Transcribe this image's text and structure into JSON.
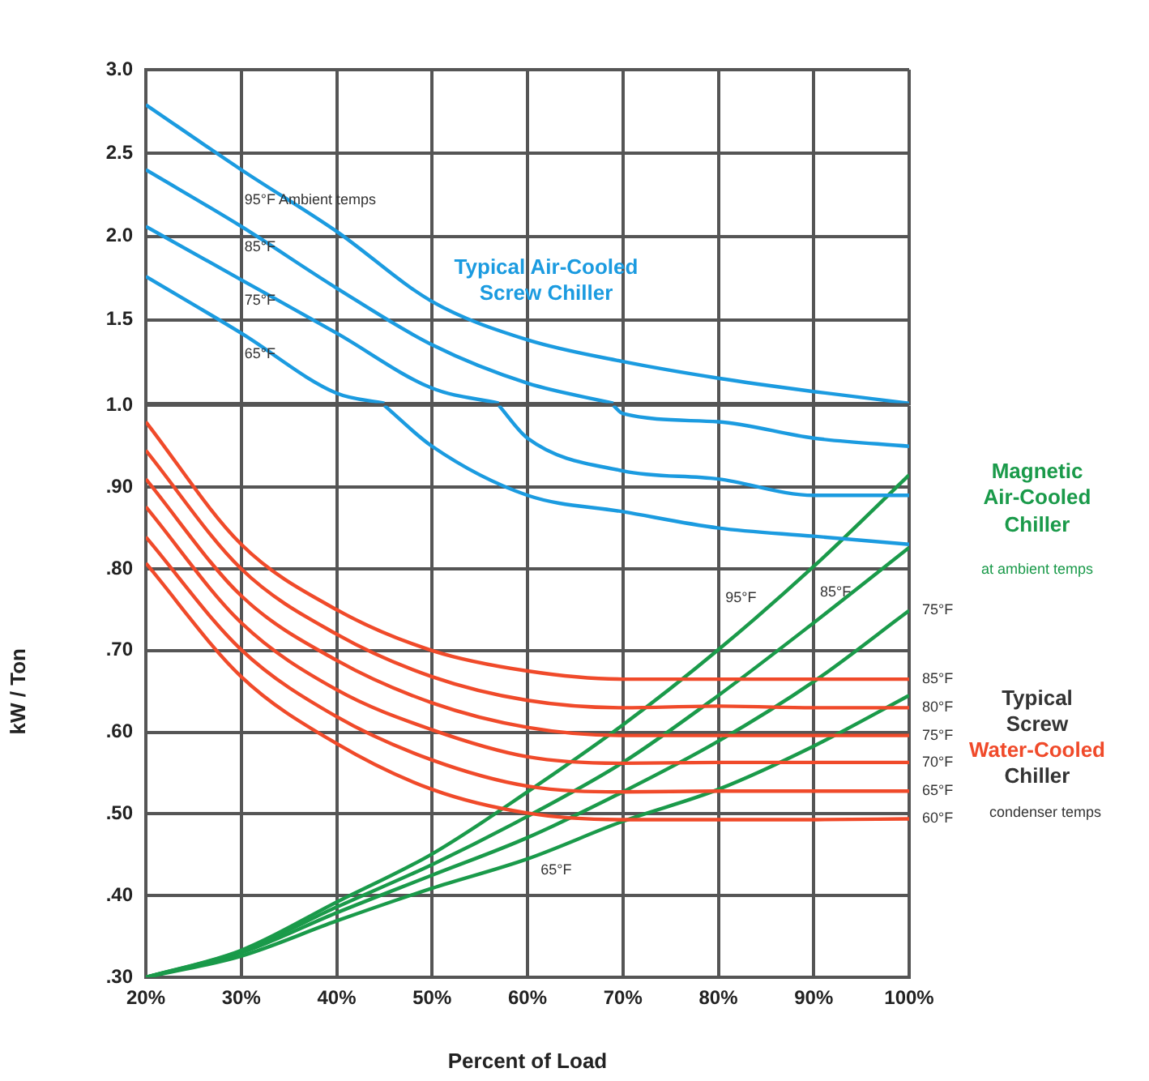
{
  "chart_data": [
    {
      "type": "line",
      "x": [
        20,
        30,
        40,
        50,
        60,
        70,
        80,
        90,
        100
      ],
      "xlim": [
        20,
        100
      ],
      "xticks": [
        20,
        30,
        40,
        50,
        60,
        70,
        80,
        90,
        100
      ],
      "ylim": [
        1.0,
        3.0
      ],
      "yticks": [
        {
          "value": 1.5,
          "label": "1.5"
        },
        {
          "value": 2.0,
          "label": "2.0"
        },
        {
          "value": 2.5,
          "label": "2.5"
        },
        {
          "value": 3.0,
          "label": "3.0"
        }
      ],
      "tick_labels": "y",
      "grid": true,
      "legend": false,
      "marker": "none",
      "line_style": "solid",
      "series": [
        {
          "name": "95°F Ambient temps",
          "color": "#1b9be0",
          "values": [
            2.79,
            2.4,
            2.03,
            1.61,
            1.38,
            1.25,
            1.15,
            1.07,
            1.0
          ]
        },
        {
          "name": "85°F",
          "color": "#1b9be0",
          "x": [
            20,
            30,
            40,
            50,
            60,
            69
          ],
          "values": [
            2.4,
            2.06,
            1.69,
            1.35,
            1.12,
            1.0
          ]
        },
        {
          "name": "75°F",
          "color": "#1b9be0",
          "x": [
            20,
            30,
            40,
            50,
            57
          ],
          "values": [
            2.06,
            1.74,
            1.42,
            1.09,
            1.0
          ]
        },
        {
          "name": "65°F",
          "color": "#1b9be0",
          "x": [
            20,
            30,
            40,
            45
          ],
          "values": [
            1.76,
            1.42,
            1.06,
            1.0
          ]
        }
      ],
      "annotations": [
        "Typical Air-Cooled Screw Chiller"
      ]
    },
    {
      "type": "line",
      "xlabel": "Percent of Load",
      "ylabel": "kW / Ton",
      "x": [
        20,
        30,
        40,
        50,
        60,
        70,
        80,
        90,
        100
      ],
      "xlim": [
        20,
        100
      ],
      "xticks": [
        {
          "value": 20,
          "label": "20%"
        },
        {
          "value": 30,
          "label": "30%"
        },
        {
          "value": 40,
          "label": "40%"
        },
        {
          "value": 50,
          "label": "50%"
        },
        {
          "value": 60,
          "label": "60%"
        },
        {
          "value": 70,
          "label": "70%"
        },
        {
          "value": 80,
          "label": "80%"
        },
        {
          "value": 90,
          "label": "90%"
        },
        {
          "value": 100,
          "label": "100%"
        }
      ],
      "ylim": [
        0.3,
        1.0
      ],
      "yticks": [
        {
          "value": 0.3,
          "label": ".30"
        },
        {
          "value": 0.4,
          "label": ".40"
        },
        {
          "value": 0.5,
          "label": ".50"
        },
        {
          "value": 0.6,
          "label": ".60"
        },
        {
          "value": 0.7,
          "label": ".70"
        },
        {
          "value": 0.8,
          "label": ".80"
        },
        {
          "value": 0.9,
          "label": ".90"
        },
        {
          "value": 1.0,
          "label": "1.0"
        }
      ],
      "grid": true,
      "legend": false,
      "marker": "none",
      "line_style": "solid",
      "series": [
        {
          "color": "#1b9be0",
          "x": [
            69,
            70,
            80,
            90,
            100
          ],
          "values": [
            1.0,
            0.99,
            0.98,
            0.96,
            0.95
          ]
        },
        {
          "color": "#1b9be0",
          "x": [
            57,
            60,
            70,
            80,
            90,
            100
          ],
          "values": [
            1.0,
            0.96,
            0.92,
            0.91,
            0.89,
            0.89
          ]
        },
        {
          "color": "#1b9be0",
          "x": [
            45,
            50,
            60,
            70,
            80,
            90,
            100
          ],
          "values": [
            1.0,
            0.95,
            0.89,
            0.87,
            0.85,
            0.84,
            0.83
          ]
        },
        {
          "name": "85°F",
          "color": "#f04a2a",
          "values": [
            0.98,
            0.83,
            0.75,
            0.7,
            0.675,
            0.665,
            0.665,
            0.665,
            0.665
          ]
        },
        {
          "name": "80°F",
          "color": "#f04a2a",
          "values": [
            0.945,
            0.8,
            0.72,
            0.668,
            0.639,
            0.63,
            0.632,
            0.63,
            0.63
          ]
        },
        {
          "name": "75°F",
          "color": "#f04a2a",
          "values": [
            0.91,
            0.767,
            0.688,
            0.636,
            0.606,
            0.596,
            0.596,
            0.596,
            0.596
          ]
        },
        {
          "name": "70°F",
          "color": "#f04a2a",
          "values": [
            0.876,
            0.734,
            0.652,
            0.603,
            0.57,
            0.562,
            0.563,
            0.563,
            0.563
          ]
        },
        {
          "name": "65°F",
          "color": "#f04a2a",
          "values": [
            0.839,
            0.701,
            0.619,
            0.566,
            0.534,
            0.527,
            0.528,
            0.528,
            0.528
          ]
        },
        {
          "name": "60°F",
          "color": "#f04a2a",
          "values": [
            0.807,
            0.668,
            0.586,
            0.53,
            0.501,
            0.493,
            0.493,
            0.493,
            0.494
          ]
        },
        {
          "name": "95°F",
          "color": "#1a9a4a",
          "values": [
            0.3,
            0.333,
            0.392,
            0.451,
            0.527,
            0.609,
            0.701,
            0.803,
            0.915
          ]
        },
        {
          "name": "85°F",
          "color": "#1a9a4a",
          "values": [
            0.3,
            0.332,
            0.386,
            0.438,
            0.497,
            0.563,
            0.645,
            0.734,
            0.826
          ]
        },
        {
          "name": "75°F",
          "color": "#1a9a4a",
          "values": [
            0.3,
            0.33,
            0.379,
            0.425,
            0.471,
            0.527,
            0.589,
            0.662,
            0.749
          ]
        },
        {
          "name": "65°F",
          "color": "#1a9a4a",
          "values": [
            0.3,
            0.326,
            0.369,
            0.409,
            0.445,
            0.491,
            0.53,
            0.583,
            0.645
          ]
        }
      ],
      "annotations": [
        "Magnetic Air-Cooled Chiller",
        "at ambient temps",
        "Typical Screw",
        "Water-Cooled",
        "Chiller",
        "condenser temps"
      ]
    }
  ]
}
